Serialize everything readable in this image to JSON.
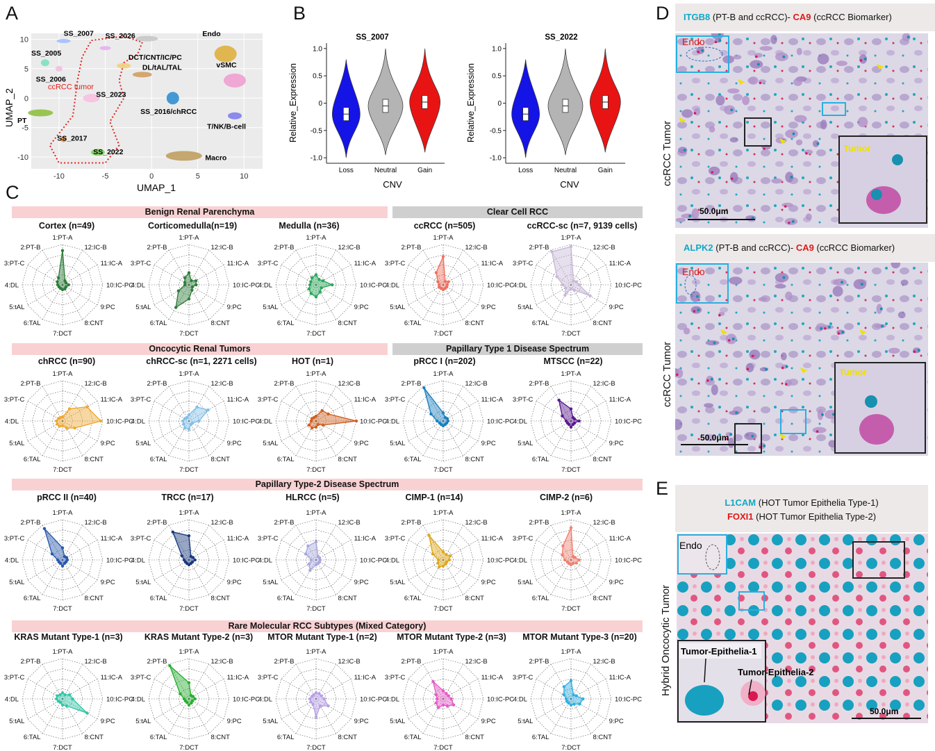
{
  "panels": {
    "a": "A",
    "b": "B",
    "c": "C",
    "d": "D",
    "e": "E"
  },
  "umap": {
    "xlabel": "UMAP_1",
    "ylabel": "UMAP_2",
    "xticks": [
      "-10",
      "-5",
      "0",
      "5",
      "10"
    ],
    "yticks": [
      "10",
      "5",
      "0",
      "-5",
      "-10"
    ],
    "tumor_label": "ccRCC tumor",
    "clusters": [
      {
        "label": "SS_2007"
      },
      {
        "label": "SS_2026"
      },
      {
        "label": "SS_2005"
      },
      {
        "label": "SS_2006"
      },
      {
        "label": "DCT/CNT/IC/PC"
      },
      {
        "label": "DL/tAL/TAL"
      },
      {
        "label": "SS_2023"
      },
      {
        "label": "SS_2016/chRCC"
      },
      {
        "label": "PT"
      },
      {
        "label": "SS_2017"
      },
      {
        "label": "SS_2022"
      },
      {
        "label": "Endo"
      },
      {
        "label": "vSMC"
      },
      {
        "label": "T/NK/B-cell"
      },
      {
        "label": "Macro"
      }
    ],
    "colors": {
      "tumor_outline": "#e0201b"
    }
  },
  "violins": {
    "ylabel": "Relative_Expression",
    "xlabel": "CNV",
    "categories": [
      "Loss",
      "Neutral",
      "Gain"
    ],
    "yticks": [
      "1.0",
      "0.5",
      "0",
      "-0.5",
      "-1.0"
    ],
    "colors": {
      "Loss": "#1414e6",
      "Neutral": "#b4b4b4",
      "Gain": "#e81414"
    },
    "plots": [
      {
        "title": "SS_2007"
      },
      {
        "title": "SS_2022"
      }
    ]
  },
  "spokes": [
    "1:PT-A",
    "12:IC-B",
    "11:IC-A",
    "10:IC-PC",
    "9:PC",
    "8:CNT",
    "7:DCT",
    "6:TAL",
    "5:tAL",
    "4:DL",
    "3:PT-C",
    "2:PT-B"
  ],
  "bands": [
    {
      "label": "Benign Renal Parenchyma",
      "style": "pink"
    },
    {
      "label": "Clear Cell RCC",
      "style": "gray"
    },
    {
      "label": "Oncocytic Renal Tumors",
      "style": "pink"
    },
    {
      "label": "Papillary Type 1 Disease Spectrum",
      "style": "gray"
    },
    {
      "label": "Papillary Type-2 Disease Spectrum",
      "style": "pink"
    },
    {
      "label": "Rare Molecular RCC Subtypes (Mixed Category)",
      "style": "pink"
    }
  ],
  "chart_data": [
    {
      "type": "radar",
      "title": "Cortex (n=49)",
      "color": "#2e7d3a",
      "values": [
        0.85,
        0.12,
        0.1,
        0.15,
        0.1,
        0.12,
        0.12,
        0.1,
        0.1,
        0.12,
        0.15,
        0.2
      ]
    },
    {
      "type": "radar",
      "title": "Corticomedulla(n=19)",
      "color": "#2e7d3a",
      "values": [
        0.3,
        0.12,
        0.2,
        0.18,
        0.1,
        0.15,
        0.35,
        0.65,
        0.3,
        0.1,
        0.12,
        0.2
      ]
    },
    {
      "type": "radar",
      "title": "Medulla (n=36)",
      "color": "#28a85a",
      "values": [
        0.25,
        0.15,
        0.2,
        0.4,
        0.15,
        0.2,
        0.3,
        0.25,
        0.2,
        0.15,
        0.15,
        0.2
      ]
    },
    {
      "type": "radar",
      "title": "ccRCC (n=505)",
      "color": "#f07060",
      "values": [
        0.7,
        0.1,
        0.15,
        0.1,
        0.1,
        0.1,
        0.12,
        0.1,
        0.12,
        0.1,
        0.15,
        0.35
      ]
    },
    {
      "type": "radar",
      "title": "ccRCC-sc (n=7, 9139 cells)",
      "color": "#c8b8d8",
      "values": [
        0.95,
        0.12,
        0.15,
        0.2,
        0.55,
        0.15,
        0.1,
        0.3,
        0.15,
        0.2,
        0.4,
        0.95
      ]
    },
    {
      "type": "radar",
      "title": "chRCC (n=90)",
      "color": "#f0a830",
      "values": [
        0.1,
        0.35,
        0.7,
        0.95,
        0.35,
        0.2,
        0.12,
        0.15,
        0.15,
        0.15,
        0.12,
        0.1
      ]
    },
    {
      "type": "radar",
      "title": "chRCC-sc (n=1, 2271 cells)",
      "color": "#80c0e8",
      "values": [
        0.15,
        0.4,
        0.55,
        0.25,
        0.1,
        0.1,
        0.2,
        0.2,
        0.15,
        0.15,
        0.12,
        0.1
      ]
    },
    {
      "type": "radar",
      "title": "HOT (n=1)",
      "color": "#d06020",
      "values": [
        0.12,
        0.3,
        0.35,
        1.0,
        0.2,
        0.1,
        0.15,
        0.2,
        0.2,
        0.12,
        0.12,
        0.1
      ]
    },
    {
      "type": "radar",
      "title": "pRCC I (n=202)",
      "color": "#1a80c0",
      "values": [
        0.2,
        0.1,
        0.12,
        0.12,
        0.1,
        0.1,
        0.12,
        0.1,
        0.1,
        0.15,
        0.35,
        0.95
      ]
    },
    {
      "type": "radar",
      "title": "MTSCC (n=22)",
      "color": "#5a1a90",
      "values": [
        0.3,
        0.1,
        0.1,
        0.2,
        0.1,
        0.1,
        0.15,
        0.1,
        0.1,
        0.12,
        0.25,
        0.6
      ]
    },
    {
      "type": "radar",
      "title": "pRCC II (n=40)",
      "color": "#2858b0",
      "values": [
        0.3,
        0.1,
        0.12,
        0.12,
        0.1,
        0.1,
        0.15,
        0.1,
        0.1,
        0.12,
        0.3,
        0.9
      ]
    },
    {
      "type": "radar",
      "title": "TRCC (n=17)",
      "color": "#1a3a80",
      "values": [
        0.6,
        0.1,
        0.12,
        0.15,
        0.1,
        0.1,
        0.12,
        0.1,
        0.1,
        0.12,
        0.2,
        0.8
      ]
    },
    {
      "type": "radar",
      "title": "HLRCC (n=5)",
      "color": "#a8a8e0",
      "values": [
        0.45,
        0.1,
        0.1,
        0.1,
        0.1,
        0.1,
        0.12,
        0.3,
        0.2,
        0.12,
        0.3,
        0.4
      ]
    },
    {
      "type": "radar",
      "title": "CIMP-1 (n=14)",
      "color": "#e0a818",
      "values": [
        0.2,
        0.15,
        0.2,
        0.15,
        0.1,
        0.12,
        0.15,
        0.2,
        0.15,
        0.12,
        0.3,
        0.7
      ]
    },
    {
      "type": "radar",
      "title": "CIMP-2 (n=6)",
      "color": "#f08070",
      "values": [
        0.8,
        0.1,
        0.12,
        0.2,
        0.15,
        0.1,
        0.12,
        0.1,
        0.1,
        0.15,
        0.25,
        0.4
      ]
    },
    {
      "type": "radar",
      "title": "KRAS Mutant Type-1 (n=3)",
      "color": "#30c8a8",
      "values": [
        0.15,
        0.12,
        0.2,
        0.25,
        0.7,
        0.2,
        0.15,
        0.1,
        0.12,
        0.15,
        0.15,
        0.12
      ]
    },
    {
      "type": "radar",
      "title": "KRAS Mutant Type-2 (n=3)",
      "color": "#28b030",
      "values": [
        0.4,
        0.1,
        0.12,
        0.15,
        0.1,
        0.12,
        0.15,
        0.1,
        0.1,
        0.12,
        0.25,
        0.95
      ]
    },
    {
      "type": "radar",
      "title": "MTOR Mutant  Type-1 (n=2)",
      "color": "#b8a0e8",
      "values": [
        0.15,
        0.15,
        0.15,
        0.2,
        0.35,
        0.2,
        0.45,
        0.15,
        0.15,
        0.15,
        0.12,
        0.12
      ]
    },
    {
      "type": "radar",
      "title": "MTOR Mutant  Type-2 (n=3)",
      "color": "#e858c8",
      "values": [
        0.2,
        0.15,
        0.15,
        0.2,
        0.3,
        0.2,
        0.15,
        0.25,
        0.2,
        0.15,
        0.2,
        0.5
      ]
    },
    {
      "type": "radar",
      "title": "MTOR Mutant  Type-3 (n=20)",
      "color": "#30b0e0",
      "values": [
        0.45,
        0.12,
        0.15,
        0.3,
        0.25,
        0.15,
        0.15,
        0.12,
        0.12,
        0.12,
        0.2,
        0.35
      ]
    }
  ],
  "micro_d1": {
    "marker1": "ITGB8",
    "desc1": " (PT-B and ccRCC)- ",
    "marker2": "CA9",
    "desc2": " (ccRCC Biomarker)",
    "side": "ccRCC Tumor",
    "endo": "Endo",
    "tumor": "Tumor",
    "scale": "50.0μm"
  },
  "micro_d2": {
    "marker1": "ALPK2",
    "desc1": " (PT-B and ccRCC)- ",
    "marker2": "CA9",
    "desc2": " (ccRCC Biomarker)",
    "side": "ccRCC Tumor",
    "endo": "Endo",
    "tumor": "Tumor",
    "scale": "50.0μm"
  },
  "micro_e": {
    "marker1": "L1CAM",
    "desc1": " (HOT Tumor Epithelia Type-1)",
    "marker2": "FOXI1",
    "desc2": " (HOT Tumor Epithelia Type-2)",
    "side": "Hybrid Oncocytic Tumor",
    "endo": "Endo",
    "epi1": "Tumor-Epithelia-1",
    "epi2": "Tumor-Epithelia-2",
    "scale": "50.0μm"
  }
}
